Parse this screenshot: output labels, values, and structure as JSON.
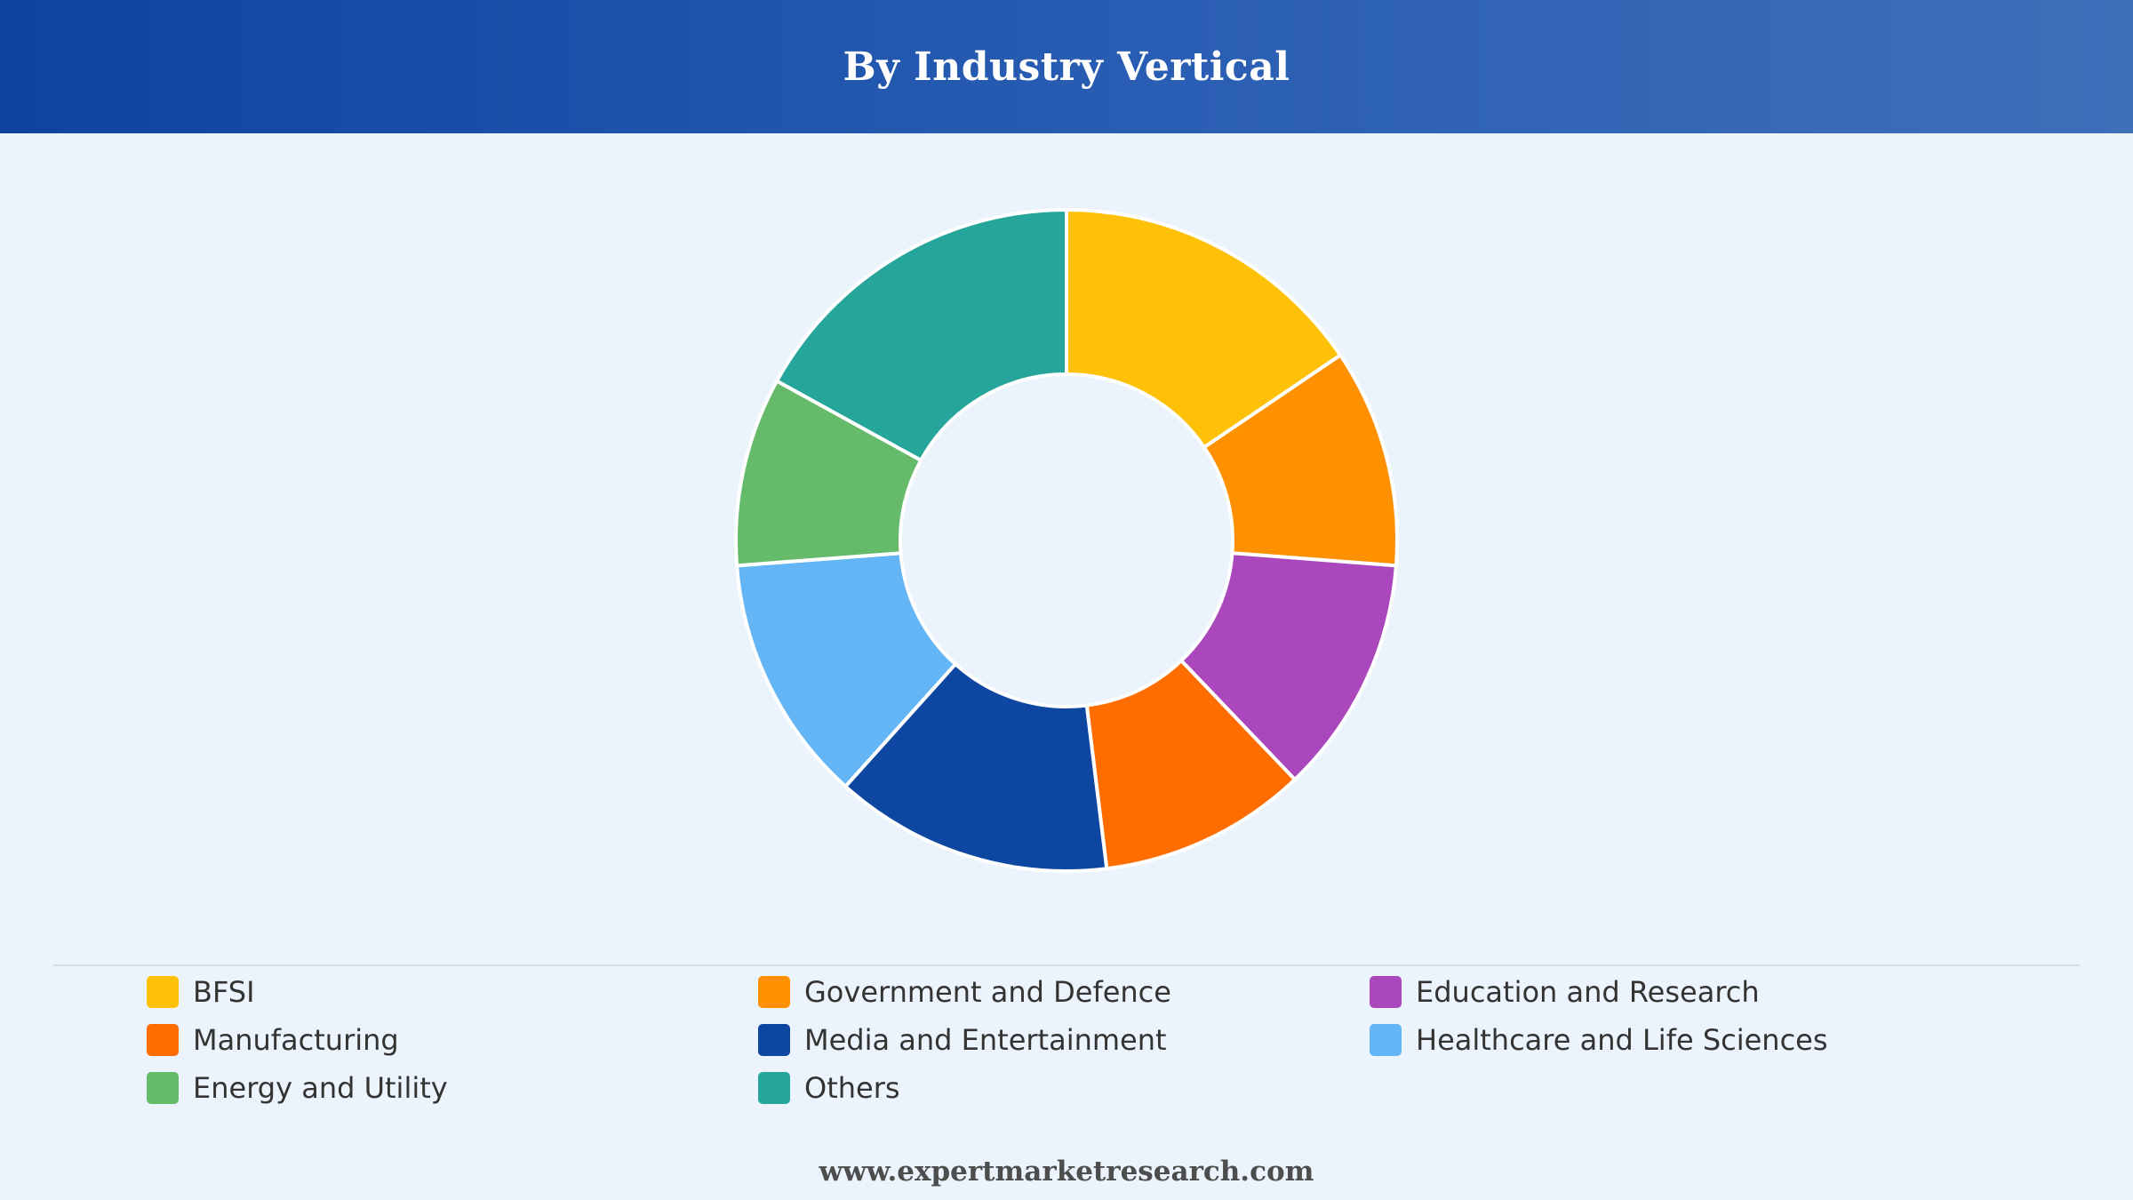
{
  "header": {
    "title": "By Industry Vertical"
  },
  "chart_data": {
    "type": "pie",
    "title": "By Industry Vertical",
    "donut": true,
    "legend_position": "bottom",
    "categories": [
      "BFSI",
      "Government and Defence",
      "Education and Research",
      "Manufacturing",
      "Media and Entertainment",
      "Healthcare and Life Sciences",
      "Energy and Utility",
      "Others"
    ],
    "values": [
      16,
      11,
      12,
      10.5,
      14,
      12.5,
      9.5,
      17.5
    ],
    "colors": [
      "#ffc107",
      "#ff9100",
      "#ab47bc",
      "#ff6d00",
      "#0d47a1",
      "#64b5f6",
      "#66bb6a",
      "#26a69a"
    ]
  },
  "legend": {
    "items": [
      {
        "label": "BFSI",
        "color": "#ffc107"
      },
      {
        "label": "Government and Defence",
        "color": "#ff9100"
      },
      {
        "label": "Education and Research",
        "color": "#ab47bc"
      },
      {
        "label": "Manufacturing",
        "color": "#ff6d00"
      },
      {
        "label": "Media and Entertainment",
        "color": "#0d47a1"
      },
      {
        "label": "Healthcare and Life Sciences",
        "color": "#64b5f6"
      },
      {
        "label": "Energy and Utility",
        "color": "#66bb6a"
      },
      {
        "label": "Others",
        "color": "#26a69a"
      }
    ]
  },
  "footer": {
    "text": "www.expertmarketresearch.com"
  }
}
